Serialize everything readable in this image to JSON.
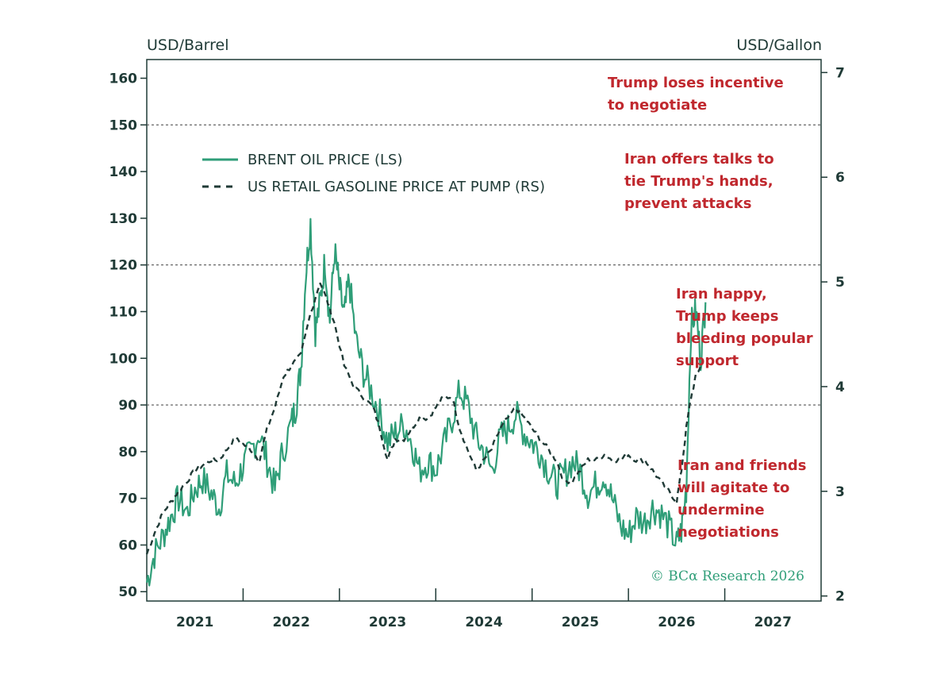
{
  "chart_data": {
    "type": "line",
    "left_axis": {
      "label": "USD/Barrel",
      "range": [
        48,
        164
      ],
      "ticks": [
        "50",
        "60",
        "70",
        "80",
        "90",
        "100",
        "110",
        "120",
        "130",
        "140",
        "150",
        "160"
      ]
    },
    "right_axis": {
      "label": "USD/Gallon",
      "range": [
        1.952,
        7.124
      ],
      "ticks": [
        "2",
        "3",
        "4",
        "5",
        "6",
        "7"
      ]
    },
    "x_axis": {
      "range": [
        2020.5,
        2027.5
      ],
      "ticks": [
        "2021",
        "2022",
        "2023",
        "2024",
        "2025",
        "2026",
        "2027"
      ]
    },
    "grid": false,
    "reference_lines": [
      90,
      120,
      150
    ],
    "legend": {
      "placement": "top-left",
      "entries": [
        "BRENT OIL PRICE (LS)",
        "US RETAIL GASOLINE PRICE AT PUMP (RS)"
      ]
    },
    "annotations": [
      {
        "lines": [
          "Trump loses incentive",
          "to negotiate"
        ]
      },
      {
        "lines": [
          "Iran offers talks to",
          "tie Trump's hands,",
          "prevent attacks"
        ]
      },
      {
        "lines": [
          "Iran happy,",
          "Trump keeps",
          "bleeding popular",
          "support"
        ]
      },
      {
        "lines": [
          "Iran and friends",
          "will agitate to",
          "undermine",
          "negotiations"
        ]
      }
    ],
    "copyright": "© BCα Research 2026",
    "colors": {
      "brent": "#2f9e78",
      "gasoline": "#1f3a36",
      "annotation": "#c0282e",
      "axis": "#1f3a36",
      "refline": "#555555"
    },
    "series": [
      {
        "name": "BRENT OIL PRICE (LS)",
        "axis": "left",
        "style": "solid",
        "x": [
          2020.5,
          2020.58,
          2020.67,
          2020.75,
          2020.83,
          2020.92,
          2021.0,
          2021.08,
          2021.17,
          2021.25,
          2021.33,
          2021.42,
          2021.5,
          2021.58,
          2021.67,
          2021.75,
          2021.83,
          2021.9,
          2022.0,
          2022.05,
          2022.1,
          2022.15,
          2022.2,
          2022.25,
          2022.3,
          2022.35,
          2022.4,
          2022.45,
          2022.5,
          2022.55,
          2022.6,
          2022.67,
          2022.75,
          2022.83,
          2022.92,
          2023.0,
          2023.08,
          2023.17,
          2023.25,
          2023.33,
          2023.42,
          2023.5,
          2023.58,
          2023.67,
          2023.75,
          2023.83,
          2023.92,
          2024.0,
          2024.08,
          2024.17,
          2024.25,
          2024.33,
          2024.42,
          2024.5,
          2024.58,
          2024.67,
          2024.75,
          2024.83,
          2024.92,
          2025.0,
          2025.08,
          2025.17,
          2025.25,
          2025.33,
          2025.42,
          2025.5,
          2025.58,
          2025.67,
          2025.75,
          2025.83,
          2025.92,
          2026.0,
          2026.05,
          2026.1,
          2026.15,
          2026.2,
          2026.25,
          2026.3
        ],
        "y": [
          52,
          58,
          62,
          66,
          70,
          67,
          72,
          74,
          71,
          68,
          75,
          73,
          77,
          80,
          84,
          78,
          72,
          79,
          86,
          90,
          98,
          118,
          129,
          106,
          112,
          121,
          108,
          123,
          115,
          109,
          117,
          104,
          97,
          93,
          88,
          82,
          84,
          86,
          82,
          76,
          78,
          76,
          81,
          87,
          93,
          90,
          83,
          80,
          76,
          83,
          85,
          88,
          84,
          82,
          80,
          76,
          73,
          75,
          78,
          76,
          71,
          73,
          75,
          70,
          64,
          62,
          66,
          65,
          68,
          67,
          64,
          60,
          63,
          72,
          107,
          110,
          100,
          112
        ]
      },
      {
        "name": "US RETAIL GASOLINE PRICE AT PUMP (RS)",
        "axis": "right",
        "style": "dashed",
        "x": [
          2020.5,
          2020.58,
          2020.67,
          2020.75,
          2020.83,
          2020.92,
          2021.0,
          2021.08,
          2021.17,
          2021.25,
          2021.33,
          2021.42,
          2021.5,
          2021.58,
          2021.67,
          2021.75,
          2021.83,
          2021.92,
          2022.0,
          2022.1,
          2022.2,
          2022.3,
          2022.38,
          2022.45,
          2022.55,
          2022.65,
          2022.75,
          2022.85,
          2022.92,
          2023.0,
          2023.08,
          2023.17,
          2023.25,
          2023.33,
          2023.42,
          2023.5,
          2023.58,
          2023.67,
          2023.75,
          2023.83,
          2023.92,
          2024.0,
          2024.08,
          2024.17,
          2024.25,
          2024.33,
          2024.42,
          2024.5,
          2024.58,
          2024.67,
          2024.75,
          2024.83,
          2024.92,
          2025.0,
          2025.08,
          2025.17,
          2025.25,
          2025.33,
          2025.42,
          2025.5,
          2025.58,
          2025.67,
          2025.75,
          2025.83,
          2025.92,
          2026.0,
          2026.05,
          2026.1,
          2026.15,
          2026.2,
          2026.25
        ],
        "y": [
          2.4,
          2.6,
          2.8,
          2.9,
          3.0,
          3.1,
          3.2,
          3.25,
          3.3,
          3.3,
          3.4,
          3.5,
          3.45,
          3.4,
          3.3,
          3.6,
          3.8,
          4.1,
          4.2,
          4.3,
          4.7,
          5.0,
          4.8,
          4.6,
          4.2,
          4.0,
          3.9,
          3.8,
          3.6,
          3.3,
          3.5,
          3.5,
          3.6,
          3.7,
          3.7,
          3.8,
          3.9,
          3.9,
          3.6,
          3.4,
          3.2,
          3.3,
          3.4,
          3.6,
          3.7,
          3.8,
          3.7,
          3.6,
          3.5,
          3.4,
          3.3,
          3.1,
          3.1,
          3.2,
          3.3,
          3.3,
          3.35,
          3.3,
          3.3,
          3.35,
          3.3,
          3.3,
          3.2,
          3.1,
          3.0,
          2.9,
          3.2,
          3.6,
          3.9,
          4.1,
          4.2
        ]
      }
    ]
  }
}
